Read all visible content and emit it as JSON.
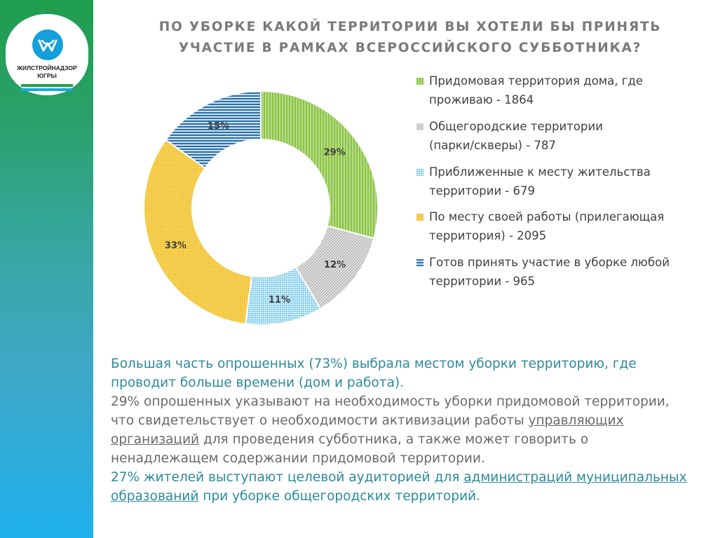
{
  "logo": {
    "line1": "ЖИЛСТРОЙНАДЗОР",
    "line2": "ЮГРЫ"
  },
  "title": {
    "line1": "ПО УБОРКЕ КАКОЙ ТЕРРИТОРИИ ВЫ ХОТЕЛИ БЫ ПРИНЯТЬ",
    "line2": "УЧАСТИЕ В РАМКАХ ВСЕРОССИЙСКОГО СУББОТНИКА?"
  },
  "chart_data": {
    "type": "pie",
    "subtype": "donut",
    "title": "ПО УБОРКЕ КАКОЙ ТЕРРИТОРИИ ВЫ ХОТЕЛИ БЫ ПРИНЯТЬ УЧАСТИЕ В РАМКАХ ВСЕРОССИЙСКОГО СУББОТНИКА?",
    "legend_position": "right",
    "slices": [
      {
        "label": "Придомовая территория дома, где проживаю - 1864",
        "value": 1864,
        "percent_label": "29%",
        "color": "#92c84f",
        "pattern": "vertical"
      },
      {
        "label": "Общегородские территории (парки/скверы) - 787",
        "value": 787,
        "percent_label": "12%",
        "color": "#a5a5a5",
        "pattern": "diagonal"
      },
      {
        "label": "Приближенные к месту жительства территории - 679",
        "value": 679,
        "percent_label": "11%",
        "color": "#4bb6db",
        "pattern": "dots"
      },
      {
        "label": "По месту своей работы (прилегающая территория) - 2095",
        "value": 2095,
        "percent_label": "33%",
        "color": "#f2be22",
        "pattern": "dots"
      },
      {
        "label": "Готов принять участие в уборке любой территории - 965",
        "value": 965,
        "percent_label": "15%",
        "color": "#2a6fa8",
        "pattern": "horizontal"
      }
    ]
  },
  "legend": [
    {
      "line1": "Придомовая территория дома, где",
      "line2": "проживаю - 1864"
    },
    {
      "line1": "Общегородские территории",
      "line2": "(парки/скверы) - 787"
    },
    {
      "line1": "Приближенные к месту жительства",
      "line2": "территории - 679"
    },
    {
      "line1": "По месту своей работы (прилегающая",
      "line2": "территория) - 2095"
    },
    {
      "line1": "Готов принять участие в уборке любой",
      "line2": "территории - 965"
    }
  ],
  "summary": {
    "p1": "Большая часть опрошенных (73%) выбрала местом уборки территорию, где проводит больше времени (дом и работа).",
    "p2_a": "29% опрошенных указывают на необходимость уборки придомовой территории, что свидетельствует о необходимости активизации работы ",
    "p2_link": "управляющих организаций",
    "p2_b": " для  проведения субботника, а также может говорить о ненадлежащем содержании придомовой территории.",
    "p3_a": "27% жителей выступают целевой аудиторией для ",
    "p3_link": "администраций муниципальных образований",
    "p3_b": " при уборке общегородских территорий."
  }
}
